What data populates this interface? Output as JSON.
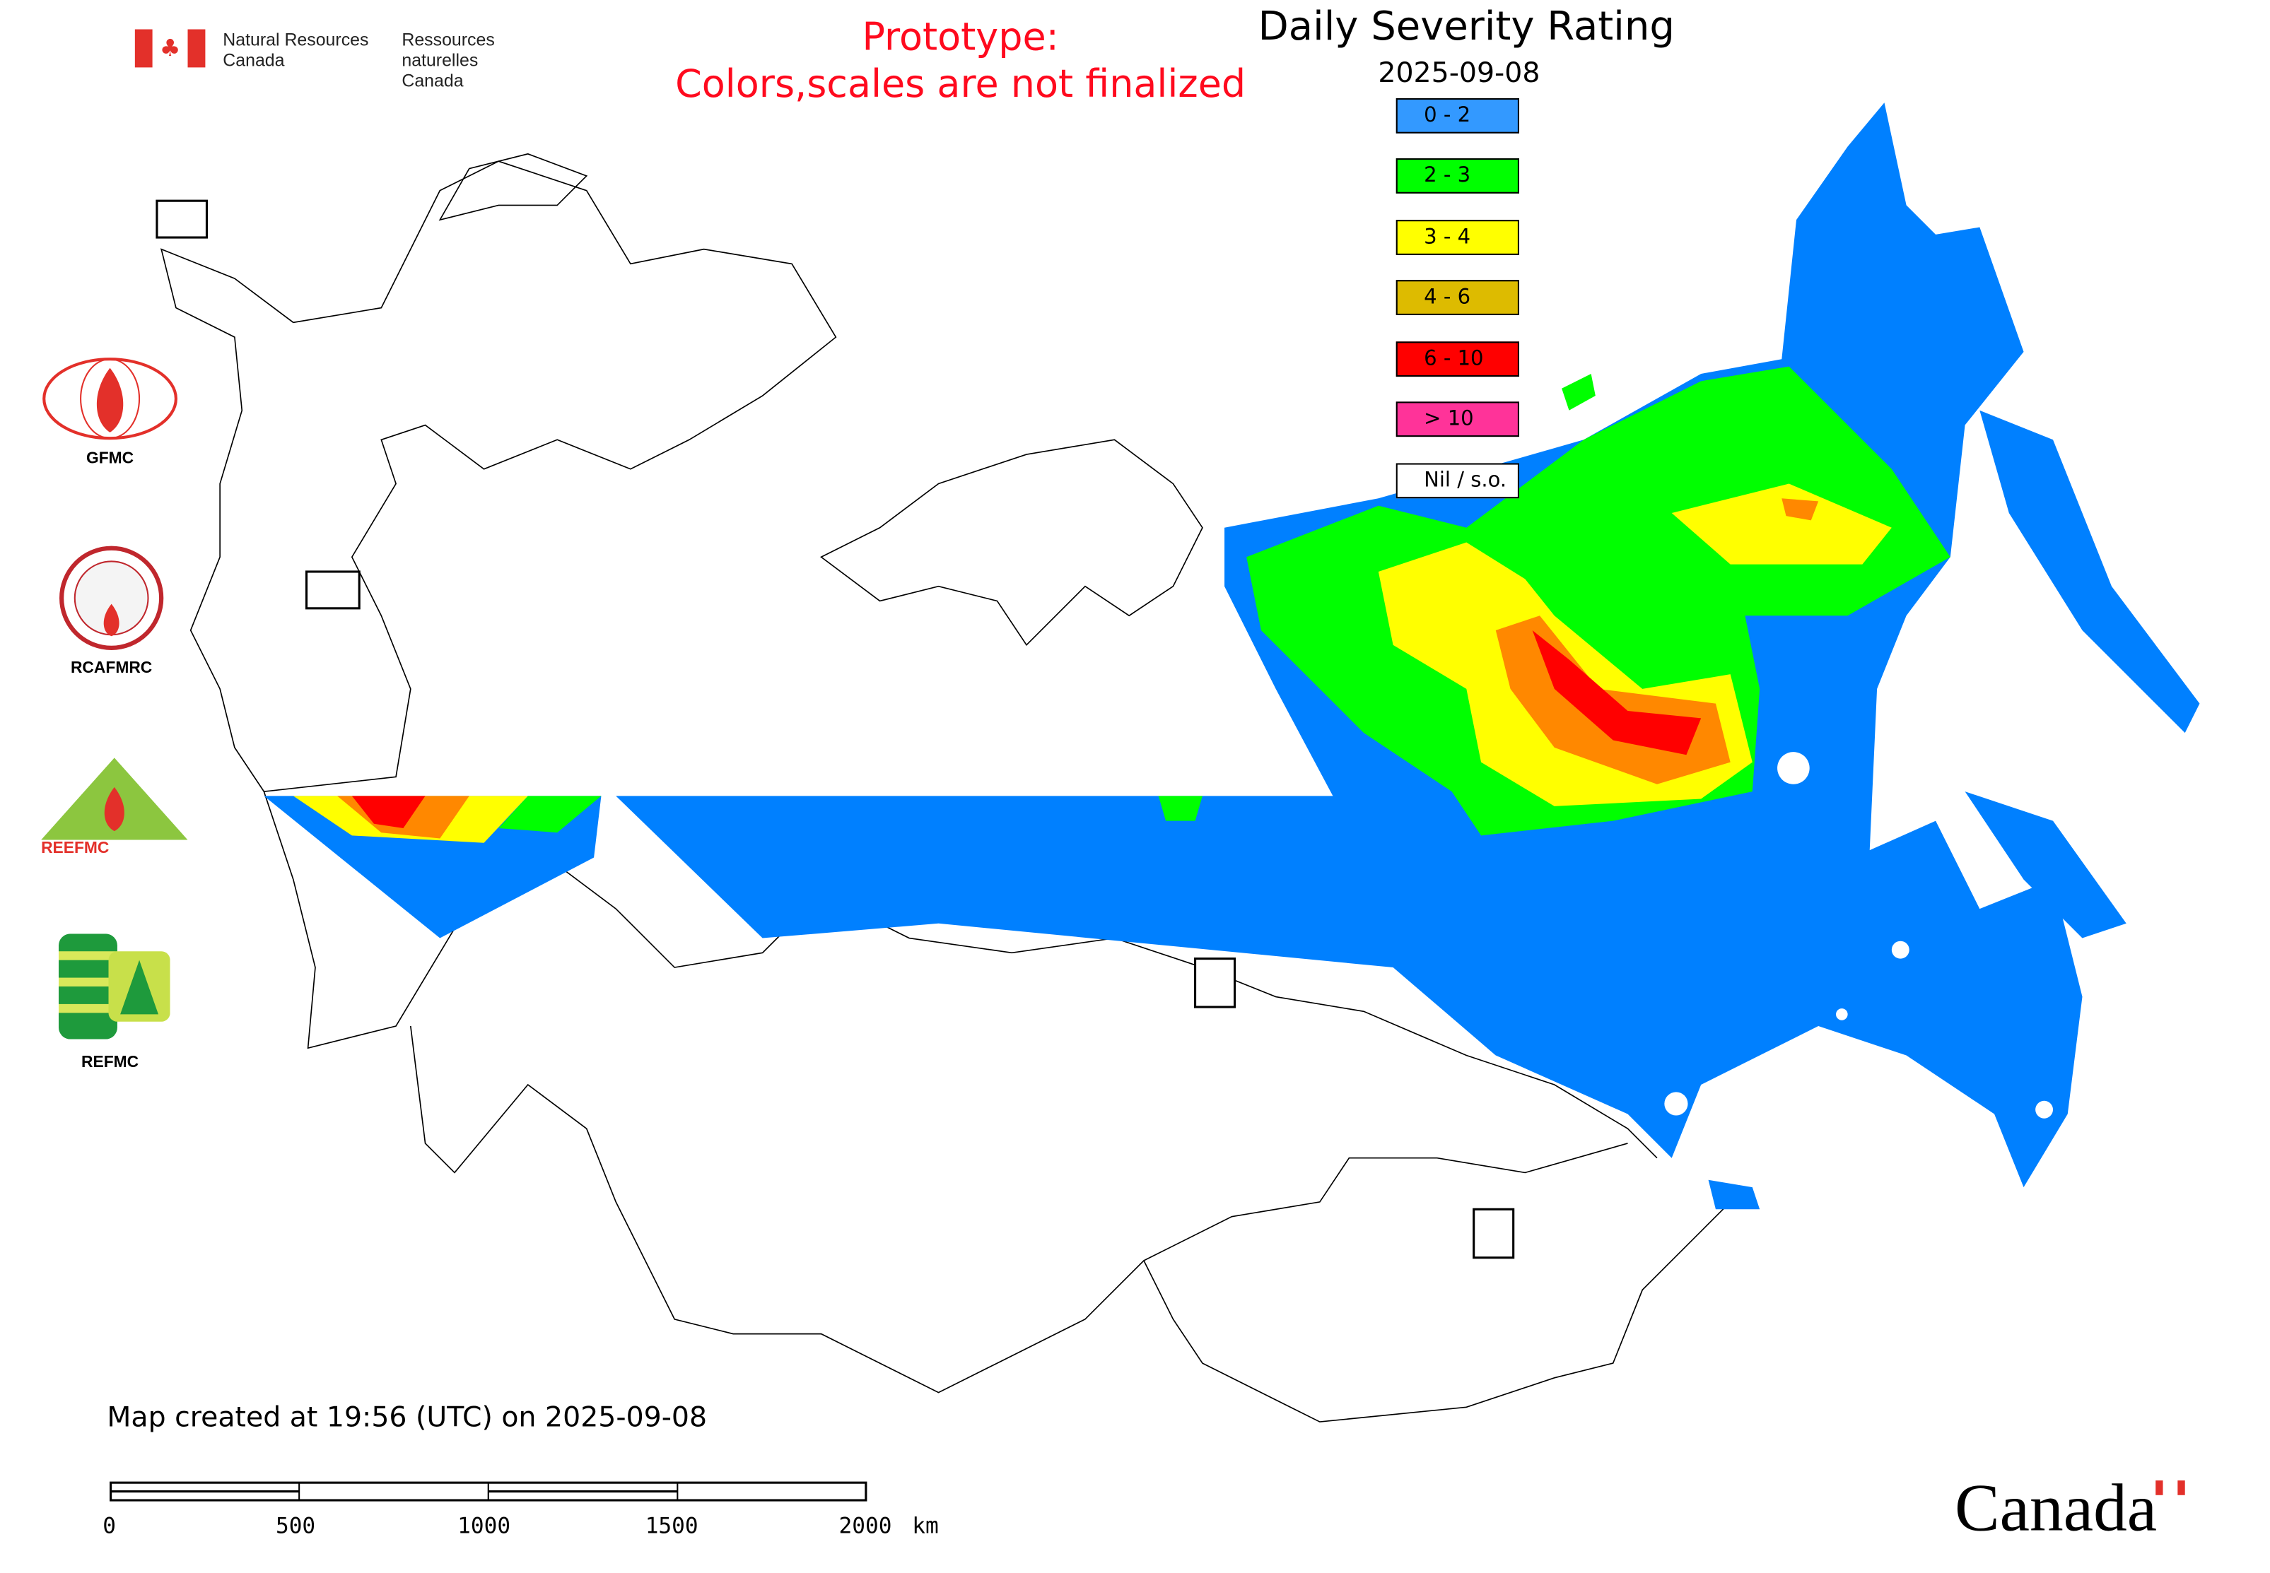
{
  "header": {
    "org_en_line1": "Natural Resources",
    "org_en_line2": "Canada",
    "org_fr_line1": "Ressources naturelles",
    "org_fr_line2": "Canada",
    "prototype_line1": "Prototype:",
    "prototype_line2": "Colors,scales are not finalized"
  },
  "legend": {
    "title": "Daily Severity Rating",
    "date": "2025-09-08",
    "items": [
      {
        "label": "0 - 2",
        "color": "#3399ff"
      },
      {
        "label": "2 - 3",
        "color": "#00ff00"
      },
      {
        "label": "3 - 4",
        "color": "#ffff00"
      },
      {
        "label": "4 - 6",
        "color": "#ddbb00"
      },
      {
        "label": "6 - 10",
        "color": "#ff0000"
      },
      {
        "label": "> 10",
        "color": "#ff3399"
      },
      {
        "label": "Nil / s.o.",
        "color": "#ffffff"
      }
    ]
  },
  "logos": {
    "gfmc": "GFMC",
    "rcafmrc": "RCAFMRC",
    "reefmc": "REEFMC",
    "refmc": "REFMC"
  },
  "footer": {
    "created": "Map created at 19:56 (UTC) on 2025-09-08"
  },
  "scalebar": {
    "ticks": [
      "0",
      "500",
      "1000",
      "1500",
      "2000"
    ],
    "unit": "km"
  },
  "wordmark": "Canada"
}
